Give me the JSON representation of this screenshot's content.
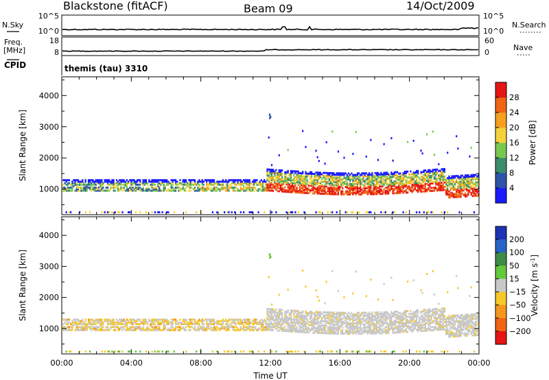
{
  "header": {
    "station": "Blackstone (fitACF)",
    "beam": "Beam 09",
    "date": "14/Oct/2009"
  },
  "nsky_panel": {
    "left_label": "N.Sky",
    "right_label": "N.Search",
    "left_ticks": [
      "10^5",
      "10^0"
    ],
    "right_ticks": [
      "10^5",
      "10^0"
    ]
  },
  "freq_panel": {
    "left_label_1": "Freq.",
    "left_label_2": "[MHz]",
    "right_label": "Nave",
    "left_ticks": [
      "18",
      "8"
    ],
    "right_ticks": [
      "60",
      "0"
    ]
  },
  "cpid_panel": {
    "label": "CPID",
    "value": "themis (tau) 3310"
  },
  "chart_data": [
    {
      "type": "heatmap",
      "name": "power",
      "ylabel": "Slant Range [km]",
      "ylim": [
        180,
        4600
      ],
      "y_ticks": [
        "1000",
        "2000",
        "3000",
        "4000"
      ],
      "y_tick_values": [
        1000,
        2000,
        3000,
        4000
      ],
      "colorbar": {
        "label": "Power [dB]",
        "ticks": [
          "4",
          "8",
          "12",
          "16",
          "20",
          "24",
          "28"
        ],
        "colors": [
          "#1a1aff",
          "#2d54a8",
          "#3c8c6e",
          "#78c850",
          "#f5d23c",
          "#f5a01e",
          "#f06414",
          "#e61414"
        ]
      }
    },
    {
      "type": "heatmap",
      "name": "velocity",
      "ylabel": "Slant Range [km]",
      "ylim": [
        180,
        4600
      ],
      "y_ticks": [
        "1000",
        "2000",
        "3000",
        "4000"
      ],
      "y_tick_values": [
        1000,
        2000,
        3000,
        4000
      ],
      "colorbar": {
        "label": "Velocity [m s",
        "label_sup": "-1",
        "label_end": "]",
        "ticks": [
          "200",
          "100",
          "50",
          "15",
          "−15",
          "−50",
          "−100",
          "−200"
        ],
        "colors": [
          "#1e32b4",
          "#2864c8",
          "#3c8c46",
          "#64c83c",
          "#c8c8c8",
          "#f5c828",
          "#f5961e",
          "#f06414",
          "#e61414"
        ]
      }
    }
  ],
  "x_axis": {
    "label": "Time UT",
    "xlim": [
      0,
      24
    ],
    "ticks": [
      "00:00",
      "04:00",
      "08:00",
      "12:00",
      "16:00",
      "20:00",
      "00:00"
    ],
    "tick_hours": [
      0,
      4,
      8,
      12,
      16,
      20,
      24
    ]
  }
}
